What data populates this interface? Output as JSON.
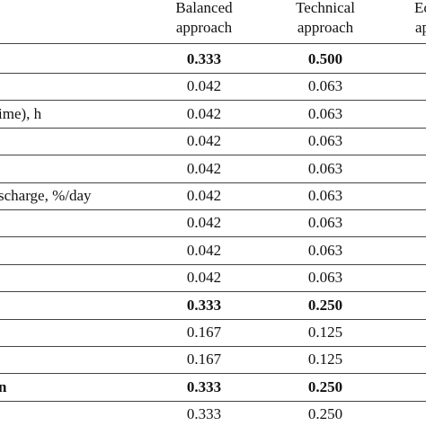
{
  "table": {
    "headers": [
      {
        "lines": [
          "Balanced",
          "approach"
        ]
      },
      {
        "lines": [
          "Technical",
          "approach"
        ]
      },
      {
        "lines": [
          "Ec",
          "ap"
        ]
      }
    ],
    "rows": [
      {
        "values": [
          "0.333",
          "0.500"
        ],
        "bold": true
      },
      {
        "values": [
          "0.042",
          "0.063"
        ]
      },
      {
        "label": "ime), h",
        "values": [
          "0.042",
          "0.063"
        ]
      },
      {
        "values": [
          "0.042",
          "0.063"
        ]
      },
      {
        "values": [
          "0.042",
          "0.063"
        ]
      },
      {
        "label": "scharge, %/day",
        "values": [
          "0.042",
          "0.063"
        ]
      },
      {
        "values": [
          "0.042",
          "0.063"
        ]
      },
      {
        "values": [
          "0.042",
          "0.063"
        ]
      },
      {
        "values": [
          "0.042",
          "0.063"
        ]
      },
      {
        "values": [
          "0.333",
          "0.250"
        ],
        "bold": true
      },
      {
        "values": [
          "0.167",
          "0.125"
        ]
      },
      {
        "values": [
          "0.167",
          "0.125"
        ]
      },
      {
        "label": "n",
        "values": [
          "0.333",
          "0.250"
        ],
        "bold": true
      },
      {
        "values": [
          "0.333",
          "0.250"
        ]
      }
    ]
  }
}
